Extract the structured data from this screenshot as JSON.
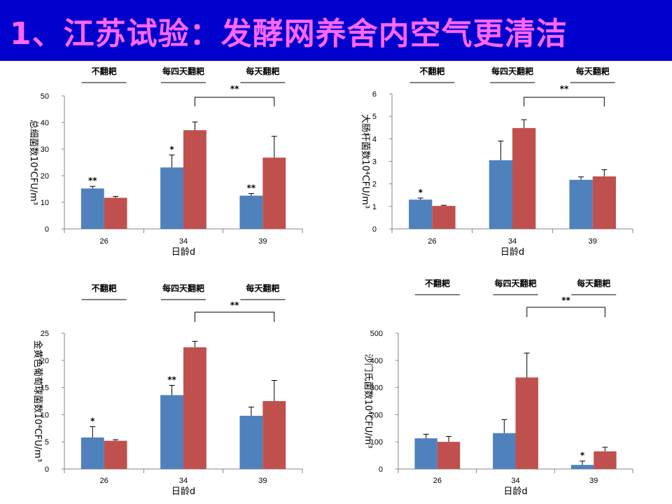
{
  "page_title": "1、江苏试验：发酵网养舍内空气更清洁",
  "colors": {
    "title_bg": "#0000cc",
    "title_text": "#ff66ff",
    "blue": "#4f81bd",
    "red": "#c0504d"
  },
  "chart_data": [
    {
      "type": "bar",
      "name": "chart-total-bacteria",
      "ylabel": "总细菌数10⁴CFU/m³",
      "xlabel": "日龄d",
      "categories": [
        "26",
        "34",
        "39"
      ],
      "ylim": [
        0,
        50
      ],
      "yticks": [
        "0",
        "10",
        "20",
        "30",
        "40",
        "50"
      ],
      "ytick_values": [
        0,
        10,
        20,
        30,
        40,
        50
      ],
      "series": [
        {
          "name": "blue",
          "values": [
            15.2,
            23.1,
            12.5
          ],
          "errors": [
            0.8,
            4.7,
            0.8
          ]
        },
        {
          "name": "red",
          "values": [
            11.7,
            37.1,
            26.8
          ],
          "errors": [
            0.5,
            3.1,
            8.0
          ]
        }
      ],
      "group_labels": [
        "不翻耙",
        "每四天翻耙",
        "每天翻耙"
      ],
      "sig_marks": [
        "**",
        "*",
        "**"
      ],
      "bracket_sig": "**"
    },
    {
      "type": "bar",
      "name": "chart-e-coli",
      "ylabel": "大肠杆菌数10⁴CFU/m³",
      "xlabel": "日龄d",
      "categories": [
        "26",
        "34",
        "39"
      ],
      "ylim": [
        0,
        6
      ],
      "yticks": [
        "0",
        "1",
        "2",
        "3",
        "4",
        "5",
        "6"
      ],
      "ytick_values": [
        0,
        1,
        2,
        3,
        4,
        5,
        6
      ],
      "series": [
        {
          "name": "blue",
          "values": [
            1.3,
            3.05,
            2.18
          ],
          "errors": [
            0.07,
            0.85,
            0.13
          ]
        },
        {
          "name": "red",
          "values": [
            1.02,
            4.48,
            2.33
          ],
          "errors": [
            0.03,
            0.37,
            0.3
          ]
        }
      ],
      "group_labels": [
        "不翻耙",
        "每四天翻耙",
        "每天翻耙"
      ],
      "sig_marks": [
        "*",
        "",
        ""
      ],
      "bracket_sig": "**"
    },
    {
      "type": "bar",
      "name": "chart-staph",
      "ylabel": "金黄色葡萄球菌数10⁴CFU/m³",
      "xlabel": "日龄d",
      "categories": [
        "26",
        "34",
        "39"
      ],
      "ylim": [
        0,
        25
      ],
      "yticks": [
        "0",
        "5",
        "10",
        "15",
        "20",
        "25"
      ],
      "ytick_values": [
        0,
        5,
        10,
        15,
        20,
        25
      ],
      "series": [
        {
          "name": "blue",
          "values": [
            5.8,
            13.6,
            9.8
          ],
          "errors": [
            2.0,
            1.8,
            1.6
          ]
        },
        {
          "name": "red",
          "values": [
            5.2,
            22.4,
            12.5
          ],
          "errors": [
            0.2,
            1.1,
            3.8
          ]
        }
      ],
      "group_labels": [
        "不翻耙",
        "每四天翻耙",
        "每天翻耙"
      ],
      "sig_marks": [
        "*",
        "**",
        ""
      ],
      "bracket_sig": "**"
    },
    {
      "type": "bar",
      "name": "chart-salmonella",
      "ylabel": "沙门氏菌数10⁴CFU/m³",
      "xlabel": "日龄d",
      "categories": [
        "26",
        "34",
        "39"
      ],
      "ylim": [
        0,
        500
      ],
      "yticks": [
        "0",
        "100",
        "200",
        "300",
        "400",
        "500"
      ],
      "ytick_values": [
        0,
        100,
        200,
        300,
        400,
        500
      ],
      "series": [
        {
          "name": "blue",
          "values": [
            113,
            132,
            15
          ],
          "errors": [
            15,
            50,
            14
          ]
        },
        {
          "name": "red",
          "values": [
            100,
            337,
            65
          ],
          "errors": [
            20,
            90,
            15
          ]
        }
      ],
      "group_labels": [
        "不翻耙",
        "每四天翻耙",
        "每天翻耙"
      ],
      "sig_marks": [
        "",
        "",
        "*"
      ],
      "bracket_sig": "**"
    }
  ]
}
